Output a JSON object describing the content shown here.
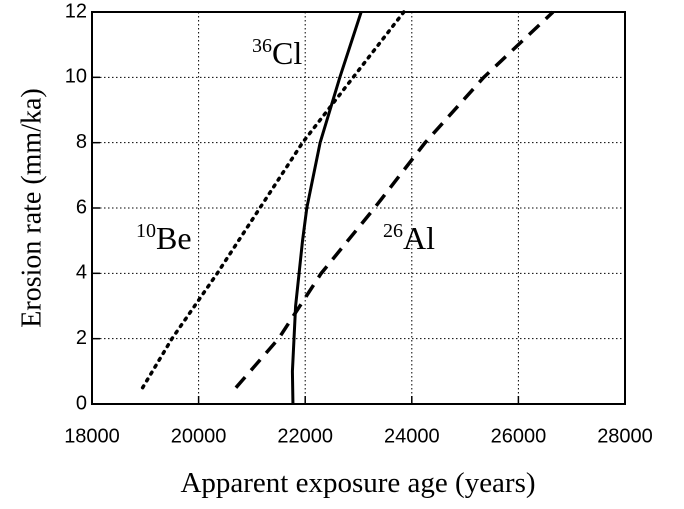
{
  "chart_data": {
    "type": "line",
    "xlabel": "Apparent exposure age (years)",
    "ylabel": "Erosion rate (mm/ka)",
    "xlim": [
      18000,
      28000
    ],
    "xticks": [
      18000,
      20000,
      22000,
      24000,
      26000,
      28000
    ],
    "ylim": [
      0,
      12
    ],
    "yticks": [
      0,
      2,
      4,
      6,
      8,
      10,
      12
    ],
    "grid": true,
    "series": [
      {
        "color": "#000000",
        "style": "dotted",
        "x": [
          18950,
          19500,
          20350,
          21150,
          21950,
          22900,
          23850
        ],
        "values": [
          0.5,
          2,
          4,
          6,
          8,
          10,
          12
        ]
      },
      {
        "color": "#000000",
        "style": "dashed",
        "x": [
          20700,
          21500,
          22300,
          23300,
          24250,
          25350,
          26650
        ],
        "values": [
          0.5,
          2,
          4,
          6,
          8,
          10,
          12
        ]
      },
      {
        "color": "#000000",
        "style": "solid",
        "x": [
          21770,
          21760,
          21820,
          21950,
          22030,
          22280,
          22650,
          23050
        ],
        "values": [
          0,
          1,
          3,
          5,
          6,
          8,
          10,
          12
        ]
      }
    ],
    "annotations": [
      {
        "mass": "36",
        "element": "Cl"
      },
      {
        "mass": "10",
        "element": "Be"
      },
      {
        "mass": "26",
        "element": "Al"
      }
    ]
  }
}
